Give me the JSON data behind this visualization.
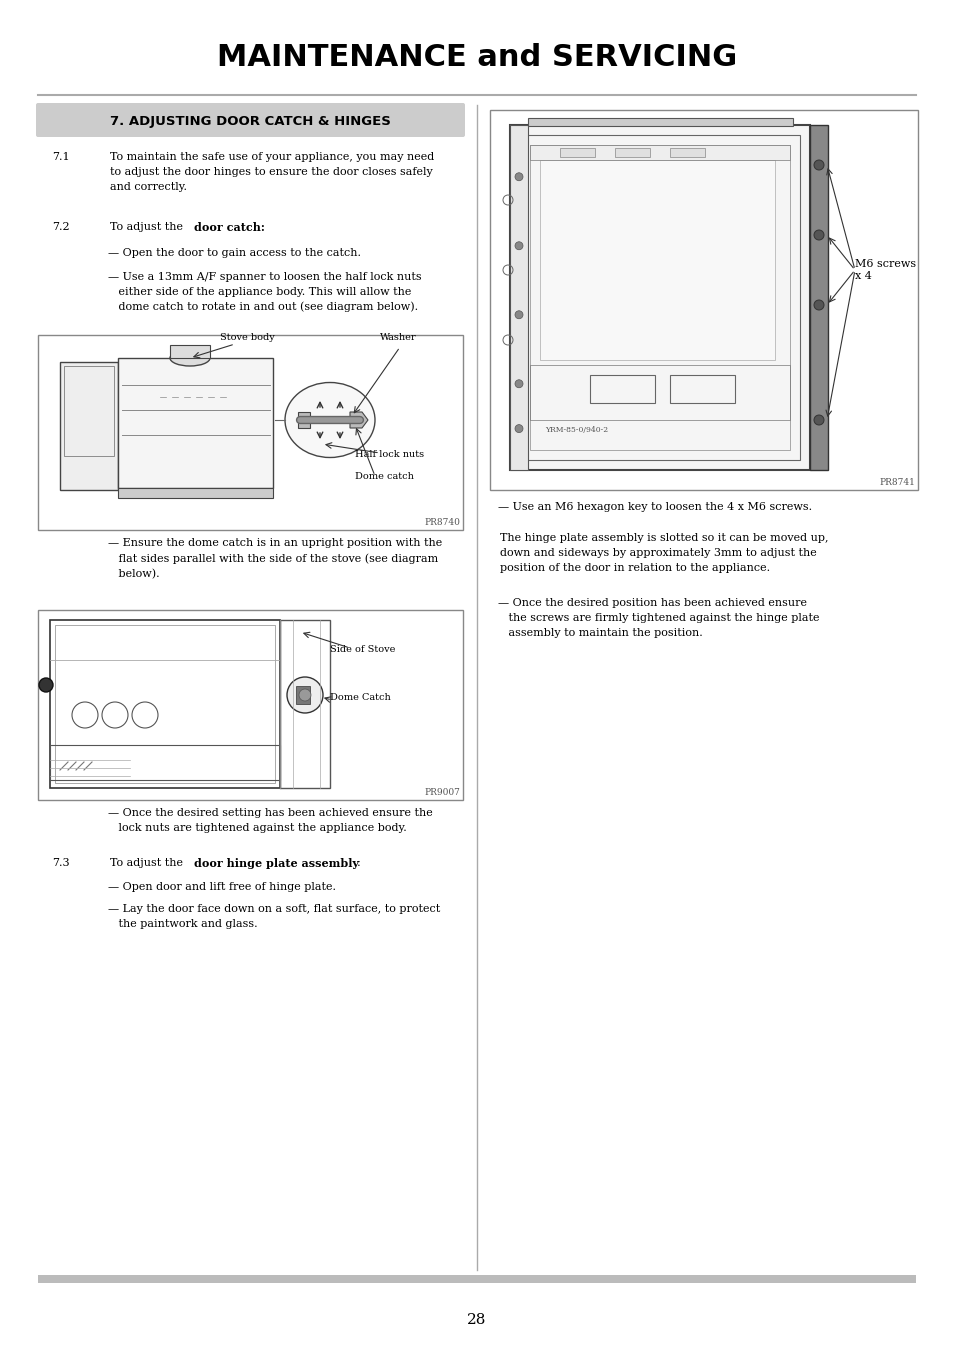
{
  "title": "MAINTENANCE and SERVICING",
  "section_title": "7. ADJUSTING DOOR CATCH & HINGES",
  "bg_color": "#ffffff",
  "section_bg": "#cccccc",
  "text_color": "#000000",
  "body_font_size": 8.0,
  "section_font_size": 9.5,
  "title_font_size": 22,
  "page_number": "28",
  "divider_color": "#aaaaaa",
  "diagram_border": "#888888",
  "diagram_bg": "#ffffff"
}
